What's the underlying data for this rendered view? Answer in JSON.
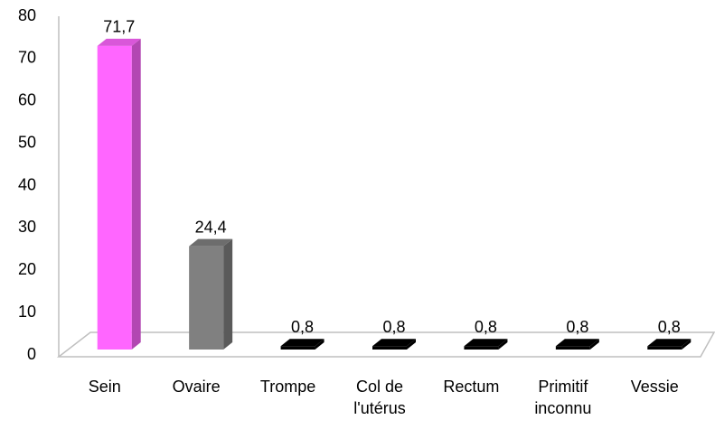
{
  "chart_data": {
    "type": "bar",
    "categories": [
      "Sein",
      "Ovaire",
      "Trompe",
      "Col de l'utérus",
      "Rectum",
      "Primitif inconnu",
      "Vessie"
    ],
    "values": [
      71.7,
      24.4,
      0.8,
      0.8,
      0.8,
      0.8,
      0.8
    ],
    "value_labels": [
      "71,7",
      "24,4",
      "0,8",
      "0,8",
      "0,8",
      "0,8",
      "0,8"
    ],
    "colors": [
      "#ff66ff",
      "#808080",
      "#000000",
      "#000000",
      "#000000",
      "#000000",
      "#000000"
    ],
    "ylim": [
      0,
      80
    ],
    "yticks": [
      0,
      10,
      20,
      30,
      40,
      50,
      60,
      70,
      80
    ]
  }
}
